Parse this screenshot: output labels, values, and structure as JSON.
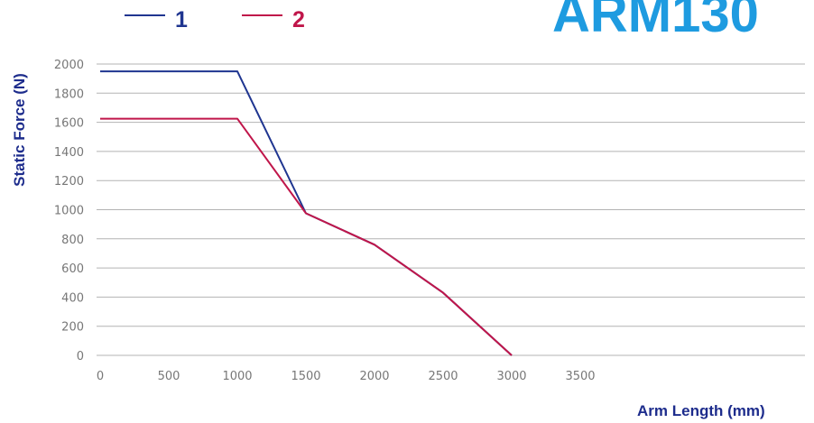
{
  "chart_data": {
    "type": "line",
    "title": "ARM130",
    "xlabel": "Arm Length (mm)",
    "ylabel": "Static Force (N)",
    "x_ticks": [
      0,
      500,
      1000,
      1500,
      2000,
      2500,
      3000,
      3500
    ],
    "y_ticks": [
      0,
      200,
      400,
      600,
      800,
      1000,
      1200,
      1400,
      1600,
      1800,
      2000
    ],
    "xlim": [
      0,
      3500
    ],
    "ylim": [
      0,
      2000
    ],
    "grid": "horizontal",
    "legend_position": "top-left",
    "series": [
      {
        "name": "1",
        "color": "#1f3590",
        "points": [
          [
            0,
            1950
          ],
          [
            1000,
            1950
          ],
          [
            1500,
            975
          ],
          [
            2000,
            760
          ],
          [
            2500,
            430
          ],
          [
            3000,
            0
          ]
        ]
      },
      {
        "name": "2",
        "color": "#c0164a",
        "points": [
          [
            0,
            1625
          ],
          [
            1000,
            1625
          ],
          [
            1500,
            975
          ],
          [
            2000,
            760
          ],
          [
            2500,
            430
          ],
          [
            3000,
            0
          ]
        ]
      }
    ]
  }
}
